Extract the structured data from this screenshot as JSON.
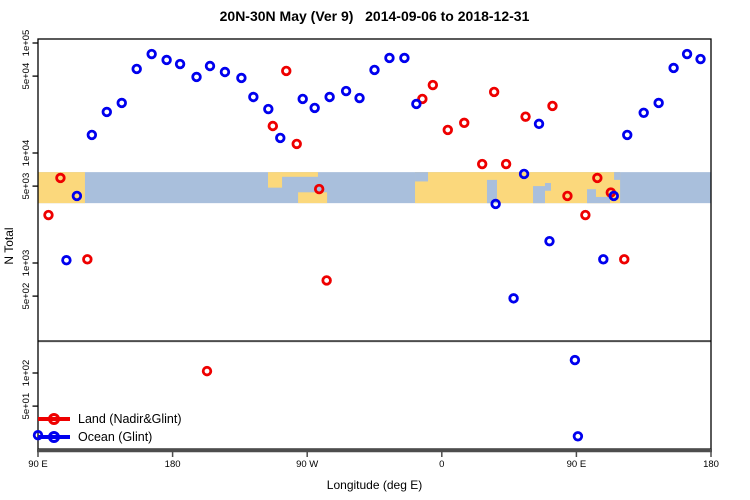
{
  "title": "20N-30N May (Ver 9)   2014-09-06 to 2018-12-31",
  "chart_data": {
    "type": "scatter",
    "xlabel": "Longitude (deg E)",
    "ylabel": "N Total",
    "x_axis": {
      "range_deg_east": [
        90,
        540
      ],
      "ticks": [
        {
          "lon": 90,
          "label": "90 E"
        },
        {
          "lon": 180,
          "label": "180"
        },
        {
          "lon": 270,
          "label": "90 W"
        },
        {
          "lon": 360,
          "label": "0"
        },
        {
          "lon": 450,
          "label": "90 E"
        },
        {
          "lon": 540,
          "label": "180"
        }
      ]
    },
    "y_axis": {
      "scale": "log",
      "ticks": [
        {
          "v": 100000,
          "label": "1e+05"
        },
        {
          "v": 50000,
          "label": "5e+04"
        },
        {
          "v": 10000,
          "label": "1e+04"
        },
        {
          "v": 5000,
          "label": "5e+03"
        },
        {
          "v": 1000,
          "label": "1e+03"
        },
        {
          "v": 500,
          "label": "5e+02"
        },
        {
          "v": 100,
          "label": "1e+02"
        },
        {
          "v": 50,
          "label": "5e+01"
        }
      ]
    },
    "divider_value": 195,
    "series": [
      {
        "name": "Land (Nadir&Glint)",
        "color": "#EE0000",
        "points": [
          [
            256,
            55700
          ],
          [
            247,
            17600
          ],
          [
            263,
            12100
          ],
          [
            347,
            31000
          ],
          [
            354,
            41500
          ],
          [
            364,
            16200
          ],
          [
            375,
            18800
          ],
          [
            387,
            7940
          ],
          [
            395,
            35900
          ],
          [
            403,
            7940
          ],
          [
            416,
            21400
          ],
          [
            434,
            26800
          ],
          [
            105,
            5930
          ],
          [
            278,
            4700
          ],
          [
            444,
            4070
          ],
          [
            464,
            5930
          ],
          [
            473,
            4370
          ],
          [
            97,
            2730
          ],
          [
            123,
            1080
          ],
          [
            283,
            694
          ],
          [
            456,
            2730
          ],
          [
            482,
            1080
          ],
          [
            203,
            104
          ]
        ]
      },
      {
        "name": "Ocean (Glint)",
        "color": "#0000EE",
        "points": [
          [
            126,
            14600
          ],
          [
            136,
            23600
          ],
          [
            146,
            28500
          ],
          [
            156,
            58100
          ],
          [
            166,
            79400
          ],
          [
            176,
            70100
          ],
          [
            185,
            64400
          ],
          [
            196,
            49100
          ],
          [
            205,
            61800
          ],
          [
            215,
            54500
          ],
          [
            226,
            48100
          ],
          [
            234,
            32300
          ],
          [
            244,
            25100
          ],
          [
            252,
            13700
          ],
          [
            267,
            31000
          ],
          [
            275,
            25700
          ],
          [
            285,
            32300
          ],
          [
            296,
            36600
          ],
          [
            305,
            31600
          ],
          [
            315,
            56900
          ],
          [
            325,
            73100
          ],
          [
            335,
            73100
          ],
          [
            343,
            27900
          ],
          [
            116,
            4070
          ],
          [
            415,
            6450
          ],
          [
            396,
            3440
          ],
          [
            475,
            4070
          ],
          [
            425,
            18400
          ],
          [
            484,
            14600
          ],
          [
            495,
            23200
          ],
          [
            505,
            28500
          ],
          [
            515,
            59300
          ],
          [
            524,
            79400
          ],
          [
            533,
            71500
          ],
          [
            109,
            1060
          ],
          [
            432,
            1580
          ],
          [
            468,
            1080
          ],
          [
            408,
            477
          ],
          [
            449,
            131
          ],
          [
            451,
            26.6
          ],
          [
            90,
            27.2
          ]
        ]
      }
    ],
    "map_band": {
      "description": "20N-30N land/ocean strip drawn across the plot",
      "v_top": 6700,
      "v_bottom": 3500,
      "ocean_color": "#A9BFDC",
      "land_color": "#FBD87C",
      "land_segments": [
        {
          "lon0": 90,
          "lon1": 121.4,
          "top": 0,
          "bot": 1
        },
        {
          "lon0": 243.8,
          "lon1": 253.2,
          "top": 0,
          "bot": 0.5
        },
        {
          "lon0": 252.5,
          "lon1": 277.2,
          "top": 0,
          "bot": 0.15
        },
        {
          "lon0": 263.9,
          "lon1": 283.3,
          "top": 0.65,
          "bot": 1
        },
        {
          "lon0": 342.1,
          "lon1": 479.2,
          "top": 0,
          "bot": 1
        }
      ],
      "ocean_patches": [
        {
          "lon0": 342.1,
          "lon1": 350.8,
          "top": 0,
          "bot": 0.3
        },
        {
          "lon0": 390.2,
          "lon1": 396.9,
          "top": 0.25,
          "bot": 1
        },
        {
          "lon0": 421.0,
          "lon1": 429.0,
          "top": 0.45,
          "bot": 1
        },
        {
          "lon0": 429.0,
          "lon1": 433.0,
          "top": 0.35,
          "bot": 0.6
        },
        {
          "lon0": 457.1,
          "lon1": 463.1,
          "top": 0.55,
          "bot": 1
        },
        {
          "lon0": 463.1,
          "lon1": 472.5,
          "top": 0.8,
          "bot": 1
        },
        {
          "lon0": 475.2,
          "lon1": 479.2,
          "top": 0,
          "bot": 0.25
        }
      ]
    }
  },
  "legend": {
    "items": [
      {
        "label": "Land (Nadir&Glint)",
        "color": "#EE0000"
      },
      {
        "label": "Ocean (Glint)",
        "color": "#0000EE"
      }
    ]
  }
}
